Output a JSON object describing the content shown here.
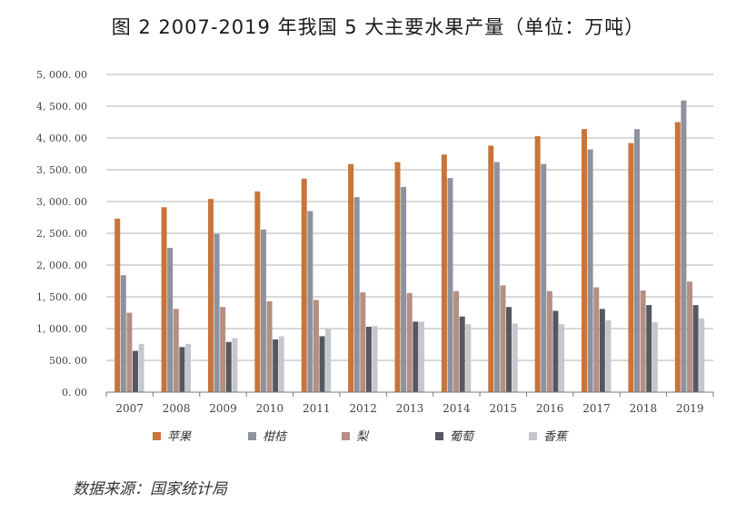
{
  "title": "图 2  2007-2019 年我国 5 大主要水果产量（单位：万吨）",
  "source": "数据来源：国家统计局",
  "chart_data": {
    "type": "bar",
    "title": "图 2  2007-2019 年我国 5 大主要水果产量（单位：万吨）",
    "xlabel": "",
    "ylabel": "",
    "ylim": [
      0,
      5000
    ],
    "yticks": [
      0,
      500,
      1000,
      1500,
      2000,
      2500,
      3000,
      3500,
      4000,
      4500,
      5000
    ],
    "ytick_labels": [
      "0. 00",
      "500. 00",
      "1, 000. 00",
      "1, 500. 00",
      "2, 000. 00",
      "2, 500. 00",
      "3, 000. 00",
      "3, 500. 00",
      "4, 000. 00",
      "4, 500. 00",
      "5, 000. 00"
    ],
    "grid": true,
    "legend_position": "bottom",
    "categories": [
      "2007",
      "2008",
      "2009",
      "2010",
      "2011",
      "2012",
      "2013",
      "2014",
      "2015",
      "2016",
      "2017",
      "2018",
      "2019"
    ],
    "series": [
      {
        "name": "苹果",
        "color": "#c8743a",
        "values": [
          2730,
          2910,
          3040,
          3160,
          3360,
          3590,
          3620,
          3740,
          3880,
          4030,
          4140,
          3920,
          4250
        ]
      },
      {
        "name": "柑桔",
        "color": "#8e929c",
        "values": [
          1840,
          2270,
          2490,
          2560,
          2850,
          3070,
          3230,
          3370,
          3620,
          3590,
          3820,
          4140,
          4590
        ]
      },
      {
        "name": "梨",
        "color": "#b58f83",
        "values": [
          1250,
          1310,
          1340,
          1430,
          1450,
          1570,
          1560,
          1590,
          1680,
          1590,
          1650,
          1600,
          1740
        ]
      },
      {
        "name": "葡萄",
        "color": "#55585e",
        "values": [
          650,
          710,
          790,
          830,
          880,
          1030,
          1110,
          1190,
          1340,
          1280,
          1310,
          1370,
          1370
        ]
      },
      {
        "name": "香蕉",
        "color": "#c4c7cd",
        "values": [
          760,
          760,
          850,
          880,
          990,
          1040,
          1110,
          1070,
          1080,
          1070,
          1130,
          1100,
          1160
        ]
      }
    ]
  }
}
